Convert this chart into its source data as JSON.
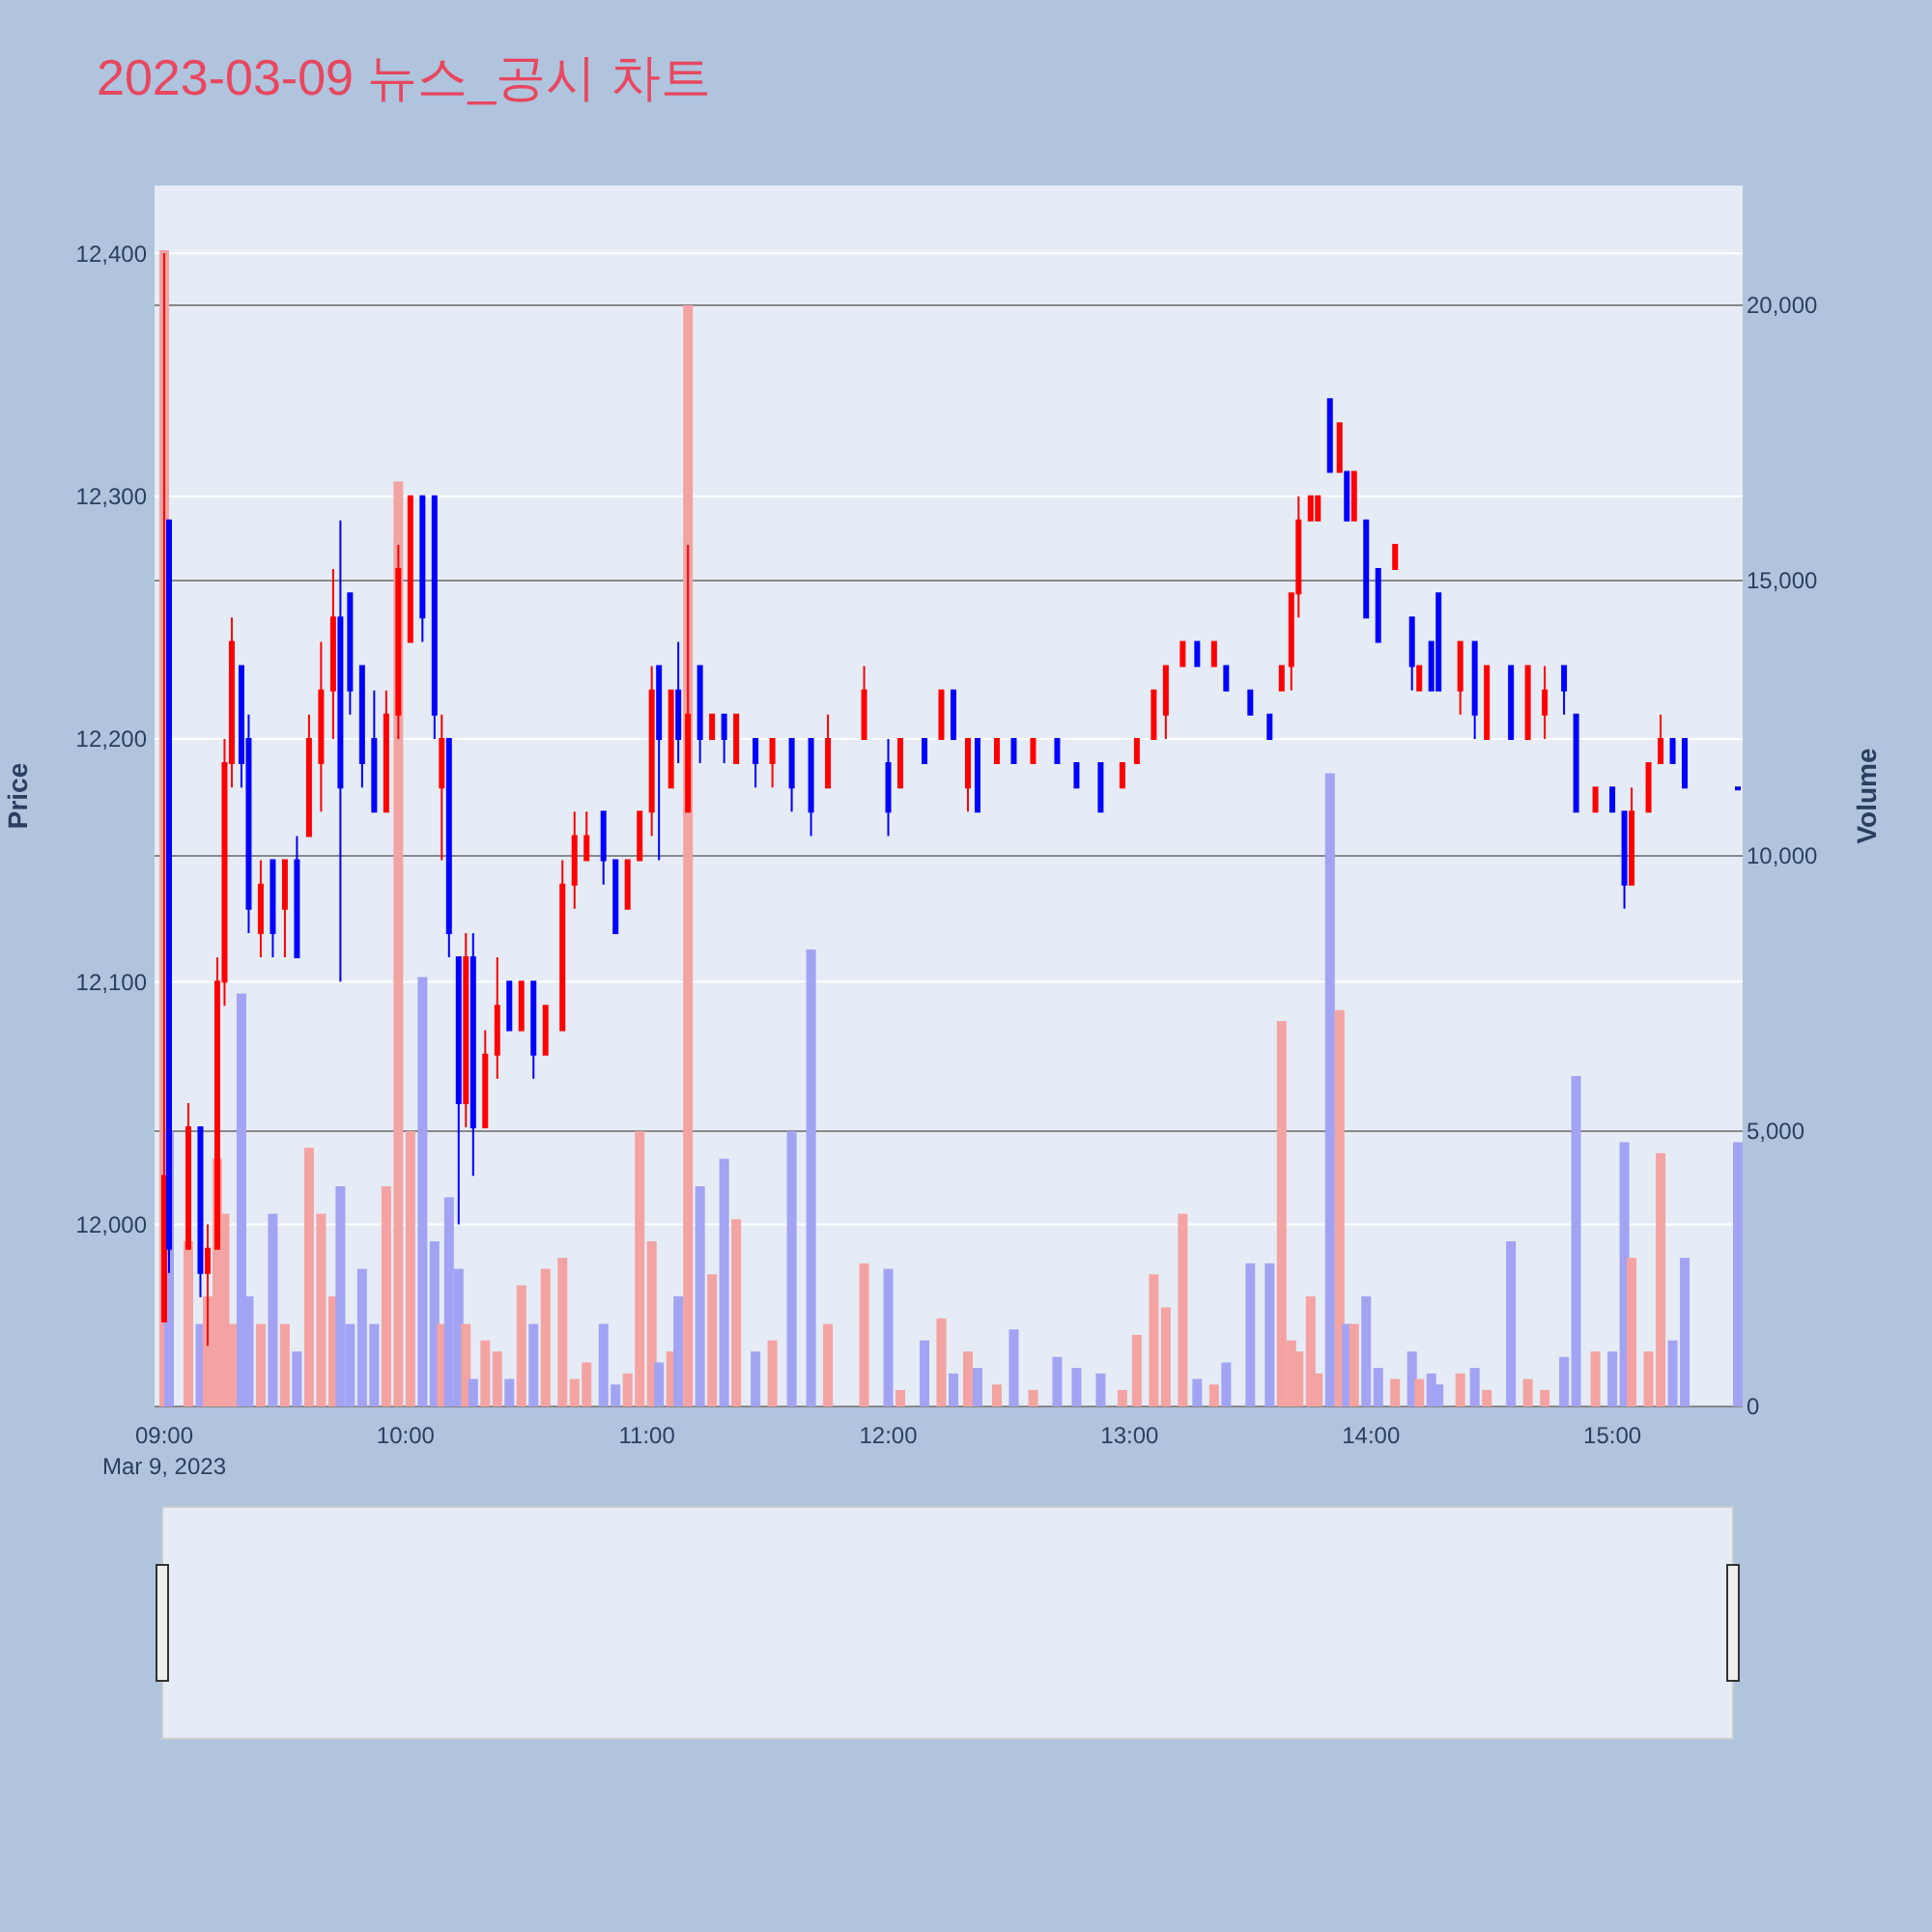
{
  "chart_data": {
    "type": "candlestick",
    "title": "2023-03-09 뉴스_공시 차트",
    "ylabel": "Price",
    "y2label": "Volume",
    "annotations": [
      "Mar 9, 2023"
    ],
    "xlim": [
      8.96,
      15.54
    ],
    "xticks": [
      {
        "value": 9,
        "label": "09:00"
      },
      {
        "value": 10,
        "label": "10:00"
      },
      {
        "value": 11,
        "label": "11:00"
      },
      {
        "value": 12,
        "label": "12:00"
      },
      {
        "value": 13,
        "label": "13:00"
      },
      {
        "value": 14,
        "label": "14:00"
      },
      {
        "value": 15,
        "label": "15:00"
      }
    ],
    "ylim": [
      11925,
      12428
    ],
    "yticks": [
      {
        "value": 12000,
        "label": "12,000"
      },
      {
        "value": 12100,
        "label": "12,100"
      },
      {
        "value": 12200,
        "label": "12,200"
      },
      {
        "value": 12300,
        "label": "12,300"
      },
      {
        "value": 12400,
        "label": "12,400"
      }
    ],
    "y2lim": [
      0,
      22175
    ],
    "y2ticks": [
      0,
      {
        "value": 5000,
        "label": "5,000"
      },
      {
        "value": 10000,
        "label": "10,000"
      },
      {
        "value": 15000,
        "label": "15,000"
      },
      {
        "value": 20000,
        "label": "20,000"
      }
    ],
    "grid": true,
    "x": [
      9.0,
      9.02,
      9.1,
      9.15,
      9.18,
      9.22,
      9.25,
      9.28,
      9.32,
      9.35,
      9.4,
      9.45,
      9.5,
      9.55,
      9.6,
      9.65,
      9.7,
      9.73,
      9.77,
      9.82,
      9.87,
      9.92,
      9.97,
      10.02,
      10.07,
      10.12,
      10.15,
      10.18,
      10.22,
      10.25,
      10.28,
      10.33,
      10.38,
      10.43,
      10.48,
      10.53,
      10.58,
      10.65,
      10.7,
      10.75,
      10.82,
      10.87,
      10.92,
      10.97,
      11.02,
      11.05,
      11.1,
      11.13,
      11.17,
      11.22,
      11.27,
      11.32,
      11.37,
      11.45,
      11.52,
      11.6,
      11.68,
      11.75,
      11.9,
      12.0,
      12.05,
      12.15,
      12.22,
      12.27,
      12.33,
      12.37,
      12.45,
      12.52,
      12.6,
      12.7,
      12.78,
      12.88,
      12.97,
      13.03,
      13.1,
      13.15,
      13.22,
      13.28,
      13.35,
      13.4,
      13.5,
      13.58,
      13.63,
      13.67,
      13.7,
      13.75,
      13.78,
      13.83,
      13.87,
      13.9,
      13.93,
      13.98,
      14.03,
      14.1,
      14.17,
      14.2,
      14.25,
      14.28,
      14.37,
      14.43,
      14.48,
      14.58,
      14.65,
      14.72,
      14.8,
      14.85,
      14.93,
      15.0,
      15.05,
      15.08,
      15.15,
      15.2,
      15.25,
      15.3,
      15.52
    ],
    "ohlc": [
      [
        11960,
        12400,
        11960,
        12020
      ],
      [
        12290,
        12290,
        11980,
        11990
      ],
      [
        11990,
        12050,
        11990,
        12040
      ],
      [
        12040,
        12040,
        11970,
        11980
      ],
      [
        11980,
        12000,
        11950,
        11990
      ],
      [
        11990,
        12110,
        11990,
        12100
      ],
      [
        12100,
        12200,
        12090,
        12190
      ],
      [
        12190,
        12250,
        12180,
        12240
      ],
      [
        12230,
        12230,
        12180,
        12190
      ],
      [
        12200,
        12210,
        12120,
        12130
      ],
      [
        12120,
        12150,
        12110,
        12140
      ],
      [
        12150,
        12150,
        12110,
        12120
      ],
      [
        12130,
        12150,
        12110,
        12150
      ],
      [
        12150,
        12160,
        12110,
        12110
      ],
      [
        12160,
        12210,
        12160,
        12200
      ],
      [
        12190,
        12240,
        12170,
        12220
      ],
      [
        12220,
        12270,
        12200,
        12250
      ],
      [
        12250,
        12290,
        12100,
        12180
      ],
      [
        12260,
        12260,
        12210,
        12220
      ],
      [
        12230,
        12230,
        12180,
        12190
      ],
      [
        12200,
        12220,
        12170,
        12170
      ],
      [
        12170,
        12220,
        12170,
        12210
      ],
      [
        12210,
        12280,
        12200,
        12270
      ],
      [
        12240,
        12300,
        12240,
        12300
      ],
      [
        12300,
        12300,
        12240,
        12250
      ],
      [
        12300,
        12300,
        12200,
        12210
      ],
      [
        12180,
        12210,
        12150,
        12200
      ],
      [
        12200,
        12200,
        12110,
        12120
      ],
      [
        12110,
        12110,
        12000,
        12050
      ],
      [
        12050,
        12120,
        12040,
        12110
      ],
      [
        12110,
        12120,
        12020,
        12040
      ],
      [
        12040,
        12080,
        12040,
        12070
      ],
      [
        12070,
        12110,
        12060,
        12090
      ],
      [
        12100,
        12100,
        12080,
        12080
      ],
      [
        12080,
        12100,
        12080,
        12100
      ],
      [
        12100,
        12100,
        12060,
        12070
      ],
      [
        12070,
        12090,
        12070,
        12090
      ],
      [
        12080,
        12150,
        12080,
        12140
      ],
      [
        12140,
        12170,
        12130,
        12160
      ],
      [
        12150,
        12170,
        12150,
        12160
      ],
      [
        12170,
        12170,
        12140,
        12150
      ],
      [
        12150,
        12150,
        12120,
        12120
      ],
      [
        12130,
        12150,
        12130,
        12150
      ],
      [
        12150,
        12170,
        12150,
        12170
      ],
      [
        12170,
        12230,
        12160,
        12220
      ],
      [
        12230,
        12230,
        12150,
        12200
      ],
      [
        12180,
        12220,
        12180,
        12220
      ],
      [
        12220,
        12240,
        12190,
        12200
      ],
      [
        12170,
        12280,
        12170,
        12210
      ],
      [
        12230,
        12230,
        12190,
        12200
      ],
      [
        12200,
        12210,
        12200,
        12210
      ],
      [
        12210,
        12210,
        12190,
        12200
      ],
      [
        12190,
        12210,
        12190,
        12210
      ],
      [
        12200,
        12200,
        12180,
        12190
      ],
      [
        12190,
        12200,
        12180,
        12200
      ],
      [
        12200,
        12200,
        12170,
        12180
      ],
      [
        12200,
        12200,
        12160,
        12170
      ],
      [
        12180,
        12210,
        12180,
        12200
      ],
      [
        12200,
        12230,
        12200,
        12220
      ],
      [
        12190,
        12200,
        12160,
        12170
      ],
      [
        12180,
        12200,
        12180,
        12200
      ],
      [
        12200,
        12200,
        12190,
        12190
      ],
      [
        12200,
        12220,
        12200,
        12220
      ],
      [
        12220,
        12220,
        12200,
        12200
      ],
      [
        12180,
        12200,
        12170,
        12200
      ],
      [
        12200,
        12200,
        12170,
        12170
      ],
      [
        12190,
        12200,
        12190,
        12200
      ],
      [
        12200,
        12200,
        12190,
        12190
      ],
      [
        12190,
        12200,
        12190,
        12200
      ],
      [
        12200,
        12200,
        12190,
        12190
      ],
      [
        12190,
        12190,
        12180,
        12180
      ],
      [
        12190,
        12190,
        12170,
        12170
      ],
      [
        12180,
        12190,
        12180,
        12190
      ],
      [
        12190,
        12200,
        12190,
        12200
      ],
      [
        12200,
        12220,
        12200,
        12220
      ],
      [
        12210,
        12230,
        12200,
        12230
      ],
      [
        12230,
        12240,
        12230,
        12240
      ],
      [
        12240,
        12240,
        12230,
        12230
      ],
      [
        12230,
        12240,
        12230,
        12240
      ],
      [
        12230,
        12230,
        12220,
        12220
      ],
      [
        12220,
        12220,
        12210,
        12210
      ],
      [
        12210,
        12210,
        12200,
        12200
      ],
      [
        12220,
        12230,
        12220,
        12230
      ],
      [
        12230,
        12260,
        12220,
        12260
      ],
      [
        12260,
        12300,
        12250,
        12290
      ],
      [
        12290,
        12300,
        12290,
        12300
      ],
      [
        12290,
        12300,
        12290,
        12300
      ],
      [
        12340,
        12340,
        12310,
        12310
      ],
      [
        12310,
        12330,
        12310,
        12330
      ],
      [
        12310,
        12310,
        12290,
        12290
      ],
      [
        12290,
        12310,
        12290,
        12310
      ],
      [
        12290,
        12290,
        12250,
        12250
      ],
      [
        12270,
        12270,
        12240,
        12240
      ],
      [
        12270,
        12280,
        12270,
        12280
      ],
      [
        12250,
        12250,
        12220,
        12230
      ],
      [
        12220,
        12230,
        12220,
        12230
      ],
      [
        12240,
        12240,
        12220,
        12220
      ],
      [
        12260,
        12260,
        12220,
        12220
      ],
      [
        12220,
        12240,
        12210,
        12240
      ],
      [
        12240,
        12240,
        12200,
        12210
      ],
      [
        12200,
        12230,
        12200,
        12230
      ],
      [
        12230,
        12230,
        12200,
        12200
      ],
      [
        12200,
        12230,
        12200,
        12230
      ],
      [
        12210,
        12230,
        12200,
        12220
      ],
      [
        12230,
        12230,
        12210,
        12220
      ],
      [
        12210,
        12210,
        12170,
        12170
      ],
      [
        12170,
        12180,
        12170,
        12180
      ],
      [
        12180,
        12180,
        12170,
        12170
      ],
      [
        12170,
        12170,
        12130,
        12140
      ],
      [
        12140,
        12180,
        12140,
        12170
      ],
      [
        12170,
        12190,
        12170,
        12190
      ],
      [
        12190,
        12210,
        12190,
        12200
      ],
      [
        12200,
        12200,
        12190,
        12190
      ],
      [
        12200,
        12200,
        12180,
        12180
      ],
      [
        12180,
        12180,
        12180,
        12180
      ]
    ],
    "colors": [
      "#ff0000",
      "#0000ff",
      "#ff0000",
      "#0000ff",
      "#ff0000",
      "#ff0000",
      "#ff0000",
      "#ff0000",
      "#0000ff",
      "#0000ff",
      "#ff0000",
      "#0000ff",
      "#ff0000",
      "#0000ff",
      "#ff0000",
      "#ff0000",
      "#ff0000",
      "#0000ff",
      "#0000ff",
      "#0000ff",
      "#0000ff",
      "#ff0000",
      "#ff0000",
      "#ff0000",
      "#0000ff",
      "#0000ff",
      "#ff0000",
      "#0000ff",
      "#0000ff",
      "#ff0000",
      "#0000ff",
      "#ff0000",
      "#ff0000",
      "#0000ff",
      "#ff0000",
      "#0000ff",
      "#ff0000",
      "#ff0000",
      "#ff0000",
      "#ff0000",
      "#0000ff",
      "#0000ff",
      "#ff0000",
      "#ff0000",
      "#ff0000",
      "#0000ff",
      "#ff0000",
      "#0000ff",
      "#ff0000",
      "#0000ff",
      "#ff0000",
      "#0000ff",
      "#ff0000",
      "#0000ff",
      "#ff0000",
      "#0000ff",
      "#0000ff",
      "#ff0000",
      "#ff0000",
      "#0000ff",
      "#ff0000",
      "#0000ff",
      "#ff0000",
      "#0000ff",
      "#ff0000",
      "#0000ff",
      "#ff0000",
      "#0000ff",
      "#ff0000",
      "#0000ff",
      "#0000ff",
      "#0000ff",
      "#ff0000",
      "#ff0000",
      "#ff0000",
      "#ff0000",
      "#ff0000",
      "#0000ff",
      "#ff0000",
      "#0000ff",
      "#0000ff",
      "#0000ff",
      "#ff0000",
      "#ff0000",
      "#ff0000",
      "#ff0000",
      "#ff0000",
      "#0000ff",
      "#ff0000",
      "#0000ff",
      "#ff0000",
      "#0000ff",
      "#0000ff",
      "#ff0000",
      "#0000ff",
      "#ff0000",
      "#0000ff",
      "#0000ff",
      "#ff0000",
      "#0000ff",
      "#ff0000",
      "#0000ff",
      "#ff0000",
      "#ff0000",
      "#0000ff",
      "#0000ff",
      "#ff0000",
      "#0000ff",
      "#0000ff",
      "#ff0000",
      "#ff0000",
      "#ff0000",
      "#0000ff",
      "#0000ff",
      "#0000ff"
    ],
    "series": [
      {
        "type": "bar",
        "axis": "y2",
        "values": [
          21000,
          5000,
          3000,
          1500,
          2000,
          4500,
          3500,
          1500,
          7500,
          2000,
          1500,
          3500,
          1500,
          1000,
          4700,
          3500,
          2000,
          4000,
          1500,
          2500,
          1500,
          4000,
          16800,
          5000,
          7800,
          3000,
          1500,
          3800,
          2500,
          1500,
          500,
          1200,
          1000,
          500,
          2200,
          1500,
          2500,
          2700,
          500,
          800,
          1500,
          400,
          600,
          5000,
          3000,
          800,
          1000,
          2000,
          20000,
          4000,
          2400,
          4500,
          3400,
          1000,
          1200,
          5000,
          8300,
          1500,
          2600,
          2500,
          300,
          1200,
          1600,
          600,
          1000,
          700,
          400,
          1400,
          300,
          900,
          700,
          600,
          300,
          1300,
          2400,
          1800,
          3500,
          500,
          400,
          800,
          2600,
          2600,
          7000,
          1200,
          1000,
          2000,
          600,
          11500,
          7200,
          1500,
          1500,
          2000,
          700,
          500,
          1000,
          500,
          600,
          400,
          600,
          700,
          300,
          3000,
          500,
          300,
          900,
          6000,
          1000,
          1000,
          4800,
          2700,
          1000,
          4600,
          1200,
          2700,
          4800
        ],
        "colors": [
          "#f4a3a3",
          "#a3a3f4",
          "#f4a3a3",
          "#a3a3f4",
          "#f4a3a3",
          "#f4a3a3",
          "#f4a3a3",
          "#f4a3a3",
          "#a3a3f4",
          "#a3a3f4",
          "#f4a3a3",
          "#a3a3f4",
          "#f4a3a3",
          "#a3a3f4",
          "#f4a3a3",
          "#f4a3a3",
          "#f4a3a3",
          "#a3a3f4",
          "#a3a3f4",
          "#a3a3f4",
          "#a3a3f4",
          "#f4a3a3",
          "#f4a3a3",
          "#f4a3a3",
          "#a3a3f4",
          "#a3a3f4",
          "#f4a3a3",
          "#a3a3f4",
          "#a3a3f4",
          "#f4a3a3",
          "#a3a3f4",
          "#f4a3a3",
          "#f4a3a3",
          "#a3a3f4",
          "#f4a3a3",
          "#a3a3f4",
          "#f4a3a3",
          "#f4a3a3",
          "#f4a3a3",
          "#f4a3a3",
          "#a3a3f4",
          "#a3a3f4",
          "#f4a3a3",
          "#f4a3a3",
          "#f4a3a3",
          "#a3a3f4",
          "#f4a3a3",
          "#a3a3f4",
          "#f4a3a3",
          "#a3a3f4",
          "#f4a3a3",
          "#a3a3f4",
          "#f4a3a3",
          "#a3a3f4",
          "#f4a3a3",
          "#a3a3f4",
          "#a3a3f4",
          "#f4a3a3",
          "#f4a3a3",
          "#a3a3f4",
          "#f4a3a3",
          "#a3a3f4",
          "#f4a3a3",
          "#a3a3f4",
          "#f4a3a3",
          "#a3a3f4",
          "#f4a3a3",
          "#a3a3f4",
          "#f4a3a3",
          "#a3a3f4",
          "#a3a3f4",
          "#a3a3f4",
          "#f4a3a3",
          "#f4a3a3",
          "#f4a3a3",
          "#f4a3a3",
          "#f4a3a3",
          "#a3a3f4",
          "#f4a3a3",
          "#a3a3f4",
          "#a3a3f4",
          "#a3a3f4",
          "#f4a3a3",
          "#f4a3a3",
          "#f4a3a3",
          "#f4a3a3",
          "#f4a3a3",
          "#a3a3f4",
          "#f4a3a3",
          "#a3a3f4",
          "#f4a3a3",
          "#a3a3f4",
          "#a3a3f4",
          "#f4a3a3",
          "#a3a3f4",
          "#f4a3a3",
          "#a3a3f4",
          "#a3a3f4",
          "#f4a3a3",
          "#a3a3f4",
          "#f4a3a3",
          "#a3a3f4",
          "#f4a3a3",
          "#f4a3a3",
          "#a3a3f4",
          "#a3a3f4",
          "#f4a3a3",
          "#a3a3f4",
          "#a3a3f4",
          "#f4a3a3",
          "#f4a3a3",
          "#f4a3a3",
          "#a3a3f4",
          "#a3a3f4",
          "#a3a3f4"
        ]
      }
    ]
  }
}
